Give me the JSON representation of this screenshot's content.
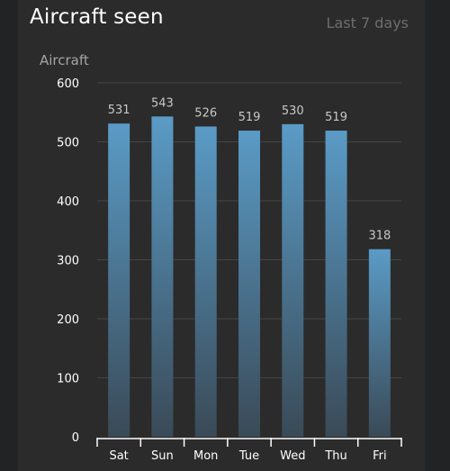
{
  "header": {
    "title": "Aircraft seen",
    "range_label": "Last 7 days"
  },
  "colors": {
    "background": "#2b2b2b",
    "bar_top": "#5a9bc6",
    "bar_bottom": "#3a4a57",
    "grid": "#454545",
    "axis": "#ffffff",
    "tick_text": "#ffffff",
    "value_text": "#c8c8c8"
  },
  "chart_data": {
    "type": "bar",
    "title": "Aircraft seen",
    "subtitle": "Last 7 days",
    "xlabel": "",
    "ylabel": "Aircraft",
    "categories": [
      "Sat",
      "Sun",
      "Mon",
      "Tue",
      "Wed",
      "Thu",
      "Fri"
    ],
    "values": [
      531,
      543,
      526,
      519,
      530,
      519,
      318
    ],
    "ylim": [
      0,
      600
    ],
    "yticks": [
      0,
      100,
      200,
      300,
      400,
      500,
      600
    ],
    "grid": true,
    "data_labels": true,
    "legend": "none"
  }
}
